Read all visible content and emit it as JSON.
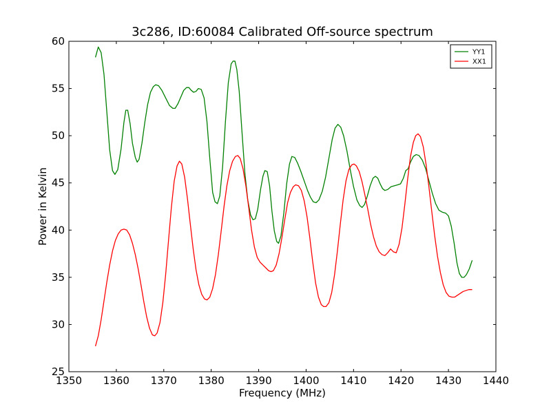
{
  "chart_data": {
    "type": "line",
    "title": "3c286, ID:60084 Calibrated Off-source spectrum",
    "xlabel": "Frequency (MHz)",
    "ylabel": "Power in Kelvin",
    "xlim": [
      1350,
      1440
    ],
    "ylim": [
      25,
      60
    ],
    "xticks": [
      1350,
      1360,
      1370,
      1380,
      1390,
      1400,
      1410,
      1420,
      1430,
      1440
    ],
    "yticks": [
      25,
      30,
      35,
      40,
      45,
      50,
      55,
      60
    ],
    "grid": false,
    "legend_position": "top-right",
    "series": [
      {
        "name": "YY1",
        "color": "#008000",
        "points": [
          [
            1355.6,
            58.3
          ],
          [
            1356.2,
            59.4
          ],
          [
            1356.8,
            58.8
          ],
          [
            1357.4,
            56.5
          ],
          [
            1358.0,
            52.5
          ],
          [
            1358.6,
            48.5
          ],
          [
            1359.2,
            46.3
          ],
          [
            1359.7,
            45.9
          ],
          [
            1360.3,
            46.4
          ],
          [
            1361.0,
            48.6
          ],
          [
            1361.6,
            51.4
          ],
          [
            1362.0,
            52.7
          ],
          [
            1362.4,
            52.7
          ],
          [
            1362.9,
            51.3
          ],
          [
            1363.4,
            49.2
          ],
          [
            1364.0,
            47.7
          ],
          [
            1364.4,
            47.2
          ],
          [
            1364.8,
            47.5
          ],
          [
            1365.4,
            49.2
          ],
          [
            1366.0,
            51.4
          ],
          [
            1366.6,
            53.3
          ],
          [
            1367.2,
            54.6
          ],
          [
            1367.8,
            55.2
          ],
          [
            1368.3,
            55.4
          ],
          [
            1368.9,
            55.3
          ],
          [
            1369.6,
            54.8
          ],
          [
            1370.4,
            54.0
          ],
          [
            1371.2,
            53.2
          ],
          [
            1371.9,
            52.9
          ],
          [
            1372.4,
            52.9
          ],
          [
            1373.0,
            53.4
          ],
          [
            1373.6,
            54.1
          ],
          [
            1374.2,
            54.8
          ],
          [
            1374.8,
            55.1
          ],
          [
            1375.3,
            55.1
          ],
          [
            1375.8,
            54.8
          ],
          [
            1376.3,
            54.6
          ],
          [
            1376.8,
            54.7
          ],
          [
            1377.3,
            55.0
          ],
          [
            1377.9,
            54.9
          ],
          [
            1378.5,
            54.0
          ],
          [
            1379.1,
            51.5
          ],
          [
            1379.7,
            47.6
          ],
          [
            1380.3,
            44.0
          ],
          [
            1380.8,
            43.0
          ],
          [
            1381.3,
            42.8
          ],
          [
            1381.8,
            43.6
          ],
          [
            1382.4,
            46.7
          ],
          [
            1383.0,
            51.5
          ],
          [
            1383.6,
            55.6
          ],
          [
            1384.2,
            57.6
          ],
          [
            1384.6,
            57.9
          ],
          [
            1385.0,
            57.9
          ],
          [
            1385.4,
            57.0
          ],
          [
            1385.9,
            54.7
          ],
          [
            1386.5,
            50.3
          ],
          [
            1387.1,
            46.0
          ],
          [
            1387.7,
            43.2
          ],
          [
            1388.3,
            41.6
          ],
          [
            1388.8,
            41.1
          ],
          [
            1389.3,
            41.2
          ],
          [
            1389.8,
            42.2
          ],
          [
            1390.4,
            44.3
          ],
          [
            1390.9,
            45.7
          ],
          [
            1391.3,
            46.3
          ],
          [
            1391.8,
            46.2
          ],
          [
            1392.3,
            44.7
          ],
          [
            1392.8,
            42.0
          ],
          [
            1393.3,
            39.9
          ],
          [
            1393.8,
            38.8
          ],
          [
            1394.2,
            38.6
          ],
          [
            1394.7,
            39.4
          ],
          [
            1395.3,
            41.8
          ],
          [
            1395.9,
            44.9
          ],
          [
            1396.5,
            47.0
          ],
          [
            1397.0,
            47.8
          ],
          [
            1397.6,
            47.7
          ],
          [
            1398.2,
            47.1
          ],
          [
            1398.9,
            46.2
          ],
          [
            1399.6,
            45.2
          ],
          [
            1400.3,
            44.2
          ],
          [
            1400.9,
            43.5
          ],
          [
            1401.5,
            43.0
          ],
          [
            1402.1,
            42.9
          ],
          [
            1402.7,
            43.2
          ],
          [
            1403.4,
            44.1
          ],
          [
            1404.1,
            45.6
          ],
          [
            1404.8,
            47.6
          ],
          [
            1405.5,
            49.6
          ],
          [
            1406.1,
            50.8
          ],
          [
            1406.7,
            51.2
          ],
          [
            1407.3,
            50.9
          ],
          [
            1407.9,
            50.0
          ],
          [
            1408.6,
            48.4
          ],
          [
            1409.3,
            46.4
          ],
          [
            1410.0,
            44.6
          ],
          [
            1410.7,
            43.2
          ],
          [
            1411.3,
            42.6
          ],
          [
            1411.8,
            42.4
          ],
          [
            1412.3,
            42.7
          ],
          [
            1412.9,
            43.6
          ],
          [
            1413.5,
            44.7
          ],
          [
            1414.1,
            45.5
          ],
          [
            1414.6,
            45.7
          ],
          [
            1415.1,
            45.5
          ],
          [
            1415.6,
            44.9
          ],
          [
            1416.1,
            44.4
          ],
          [
            1416.6,
            44.2
          ],
          [
            1417.2,
            44.3
          ],
          [
            1417.9,
            44.6
          ],
          [
            1418.6,
            44.7
          ],
          [
            1419.3,
            44.8
          ],
          [
            1419.9,
            44.9
          ],
          [
            1420.5,
            45.5
          ],
          [
            1421.0,
            46.3
          ],
          [
            1421.5,
            46.5
          ],
          [
            1422.0,
            47.2
          ],
          [
            1422.6,
            47.8
          ],
          [
            1423.2,
            48.0
          ],
          [
            1423.8,
            47.9
          ],
          [
            1424.5,
            47.4
          ],
          [
            1425.2,
            46.5
          ],
          [
            1425.9,
            45.2
          ],
          [
            1426.6,
            43.9
          ],
          [
            1427.3,
            42.8
          ],
          [
            1428.0,
            42.1
          ],
          [
            1428.7,
            41.9
          ],
          [
            1429.4,
            41.8
          ],
          [
            1430.0,
            41.5
          ],
          [
            1430.6,
            40.4
          ],
          [
            1431.2,
            38.6
          ],
          [
            1431.8,
            36.5
          ],
          [
            1432.3,
            35.4
          ],
          [
            1432.8,
            35.0
          ],
          [
            1433.3,
            35.0
          ],
          [
            1433.8,
            35.3
          ],
          [
            1434.4,
            35.9
          ],
          [
            1435.0,
            36.8
          ]
        ]
      },
      {
        "name": "XX1",
        "color": "#ff0000",
        "points": [
          [
            1355.6,
            27.7
          ],
          [
            1356.2,
            28.8
          ],
          [
            1356.8,
            30.5
          ],
          [
            1357.4,
            32.5
          ],
          [
            1358.0,
            34.5
          ],
          [
            1358.6,
            36.3
          ],
          [
            1359.2,
            37.8
          ],
          [
            1359.8,
            38.9
          ],
          [
            1360.4,
            39.6
          ],
          [
            1361.0,
            40.0
          ],
          [
            1361.6,
            40.1
          ],
          [
            1362.2,
            40.0
          ],
          [
            1362.8,
            39.5
          ],
          [
            1363.4,
            38.6
          ],
          [
            1364.0,
            37.4
          ],
          [
            1364.6,
            35.9
          ],
          [
            1365.2,
            34.2
          ],
          [
            1365.8,
            32.4
          ],
          [
            1366.4,
            30.8
          ],
          [
            1367.0,
            29.6
          ],
          [
            1367.6,
            28.9
          ],
          [
            1368.1,
            28.8
          ],
          [
            1368.6,
            29.1
          ],
          [
            1369.2,
            30.2
          ],
          [
            1369.8,
            32.3
          ],
          [
            1370.4,
            35.3
          ],
          [
            1371.0,
            38.9
          ],
          [
            1371.6,
            42.4
          ],
          [
            1372.2,
            45.2
          ],
          [
            1372.8,
            46.8
          ],
          [
            1373.3,
            47.3
          ],
          [
            1373.8,
            47.0
          ],
          [
            1374.4,
            45.6
          ],
          [
            1375.0,
            43.3
          ],
          [
            1375.6,
            40.6
          ],
          [
            1376.2,
            38.0
          ],
          [
            1376.8,
            35.8
          ],
          [
            1377.4,
            34.2
          ],
          [
            1378.0,
            33.2
          ],
          [
            1378.6,
            32.7
          ],
          [
            1379.1,
            32.6
          ],
          [
            1379.7,
            32.9
          ],
          [
            1380.3,
            33.8
          ],
          [
            1380.9,
            35.3
          ],
          [
            1381.5,
            37.4
          ],
          [
            1382.1,
            39.9
          ],
          [
            1382.7,
            42.5
          ],
          [
            1383.3,
            44.7
          ],
          [
            1383.9,
            46.3
          ],
          [
            1384.5,
            47.3
          ],
          [
            1385.1,
            47.8
          ],
          [
            1385.6,
            47.9
          ],
          [
            1386.1,
            47.6
          ],
          [
            1386.7,
            46.5
          ],
          [
            1387.3,
            44.7
          ],
          [
            1387.9,
            42.4
          ],
          [
            1388.5,
            40.0
          ],
          [
            1389.1,
            38.2
          ],
          [
            1389.7,
            37.1
          ],
          [
            1390.3,
            36.6
          ],
          [
            1390.9,
            36.3
          ],
          [
            1391.5,
            36.0
          ],
          [
            1392.1,
            35.7
          ],
          [
            1392.6,
            35.6
          ],
          [
            1393.1,
            35.7
          ],
          [
            1393.7,
            36.3
          ],
          [
            1394.3,
            37.5
          ],
          [
            1394.9,
            39.2
          ],
          [
            1395.5,
            41.1
          ],
          [
            1396.1,
            42.9
          ],
          [
            1396.7,
            44.0
          ],
          [
            1397.3,
            44.6
          ],
          [
            1397.8,
            44.8
          ],
          [
            1398.4,
            44.7
          ],
          [
            1399.0,
            44.2
          ],
          [
            1399.6,
            43.1
          ],
          [
            1400.2,
            41.4
          ],
          [
            1400.8,
            39.1
          ],
          [
            1401.4,
            36.6
          ],
          [
            1402.0,
            34.4
          ],
          [
            1402.6,
            32.9
          ],
          [
            1403.2,
            32.1
          ],
          [
            1403.7,
            31.9
          ],
          [
            1404.2,
            31.9
          ],
          [
            1404.8,
            32.3
          ],
          [
            1405.4,
            33.4
          ],
          [
            1406.0,
            35.3
          ],
          [
            1406.6,
            37.8
          ],
          [
            1407.2,
            40.6
          ],
          [
            1407.8,
            43.2
          ],
          [
            1408.4,
            45.2
          ],
          [
            1409.0,
            46.4
          ],
          [
            1409.6,
            46.9
          ],
          [
            1410.1,
            47.0
          ],
          [
            1410.6,
            46.8
          ],
          [
            1411.2,
            46.2
          ],
          [
            1411.8,
            45.1
          ],
          [
            1412.4,
            43.7
          ],
          [
            1413.0,
            42.2
          ],
          [
            1413.6,
            40.6
          ],
          [
            1414.2,
            39.3
          ],
          [
            1414.8,
            38.3
          ],
          [
            1415.4,
            37.7
          ],
          [
            1416.0,
            37.4
          ],
          [
            1416.6,
            37.3
          ],
          [
            1417.2,
            37.6
          ],
          [
            1417.8,
            38.0
          ],
          [
            1418.4,
            37.7
          ],
          [
            1419.0,
            37.6
          ],
          [
            1419.6,
            38.5
          ],
          [
            1420.2,
            40.2
          ],
          [
            1420.8,
            42.7
          ],
          [
            1421.4,
            45.4
          ],
          [
            1422.0,
            47.8
          ],
          [
            1422.6,
            49.3
          ],
          [
            1423.1,
            50.0
          ],
          [
            1423.6,
            50.2
          ],
          [
            1424.1,
            49.9
          ],
          [
            1424.7,
            48.8
          ],
          [
            1425.3,
            46.9
          ],
          [
            1425.9,
            44.5
          ],
          [
            1426.5,
            41.9
          ],
          [
            1427.1,
            39.4
          ],
          [
            1427.7,
            37.2
          ],
          [
            1428.3,
            35.5
          ],
          [
            1428.9,
            34.2
          ],
          [
            1429.5,
            33.4
          ],
          [
            1430.1,
            33.0
          ],
          [
            1430.7,
            32.9
          ],
          [
            1431.3,
            32.9
          ],
          [
            1431.9,
            33.1
          ],
          [
            1432.5,
            33.3
          ],
          [
            1433.1,
            33.5
          ],
          [
            1433.7,
            33.6
          ],
          [
            1434.3,
            33.7
          ],
          [
            1435.0,
            33.7
          ]
        ]
      }
    ]
  }
}
